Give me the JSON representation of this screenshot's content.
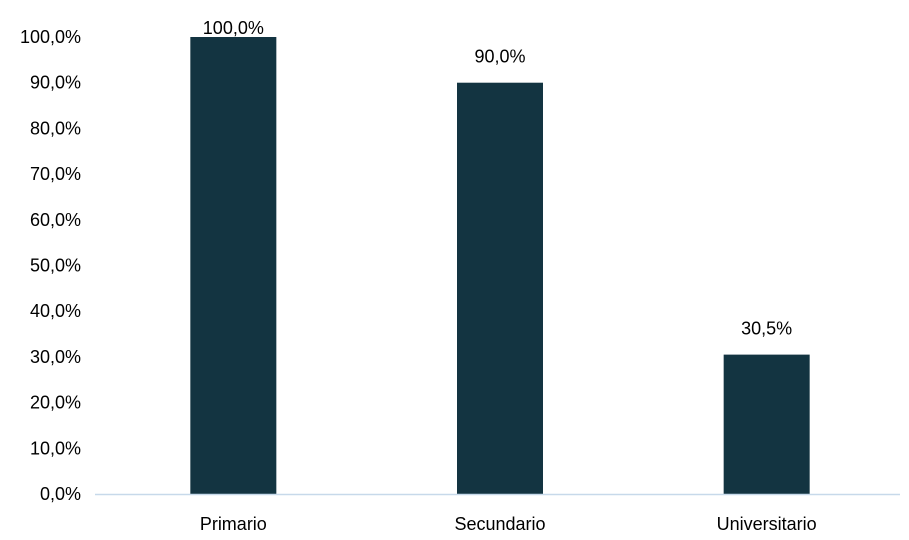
{
  "chart_data": {
    "type": "bar",
    "title": "",
    "xlabel": "",
    "ylabel": "",
    "categories": [
      "Primario",
      "Secundario",
      "Universitario"
    ],
    "values": [
      100.0,
      90.0,
      30.5
    ],
    "data_labels": [
      "100,0%",
      "90,0%",
      "30,5%"
    ],
    "ylim": [
      0,
      100
    ],
    "y_ticks": [
      0,
      10,
      20,
      30,
      40,
      50,
      60,
      70,
      80,
      90,
      100
    ],
    "y_tick_labels": [
      "0,0%",
      "10,0%",
      "20,0%",
      "30,0%",
      "40,0%",
      "50,0%",
      "60,0%",
      "70,0%",
      "80,0%",
      "90,0%",
      "100,0%"
    ],
    "grid": false,
    "legend": "none",
    "colors": {
      "bar": "#133441",
      "axis_line": "#c7d9ea"
    }
  }
}
